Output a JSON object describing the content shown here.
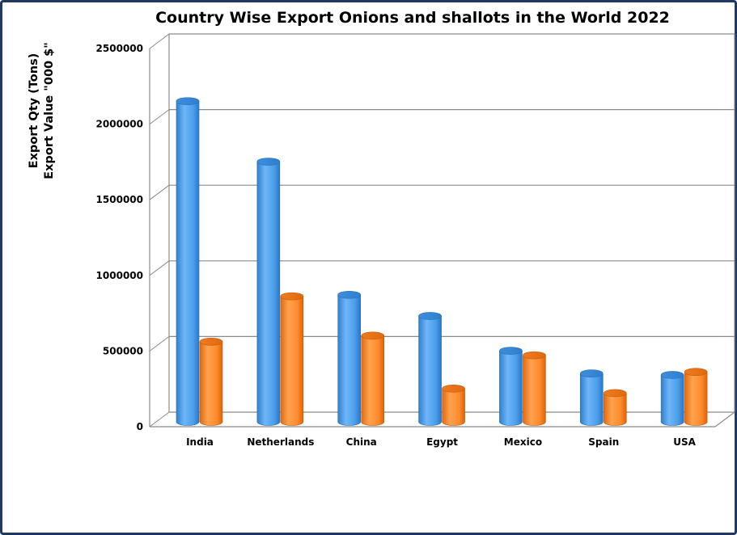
{
  "chart_data": {
    "type": "bar",
    "title": "Country Wise Export Onions and shallots in the World 2022",
    "ylabel_lines": [
      "Export Qty (Tons)",
      "Export Value \"000 $\""
    ],
    "xlabel": "",
    "categories": [
      "India",
      "Netherlands",
      "China",
      "Egypt",
      "Mexico",
      "Spain",
      "USA"
    ],
    "series": [
      {
        "name": "",
        "color": "#4a9eea",
        "values": [
          2120000,
          1720000,
          840000,
          700000,
          470000,
          320000,
          310000
        ]
      },
      {
        "name": "",
        "color": "#ff8a2b",
        "values": [
          530000,
          830000,
          570000,
          220000,
          440000,
          190000,
          330000
        ]
      }
    ],
    "ylim": [
      0,
      2500000
    ],
    "yticks": [
      "0",
      "500000",
      "1000000",
      "1500000",
      "2000000",
      "2500000"
    ],
    "grid": true,
    "legend": "none"
  }
}
